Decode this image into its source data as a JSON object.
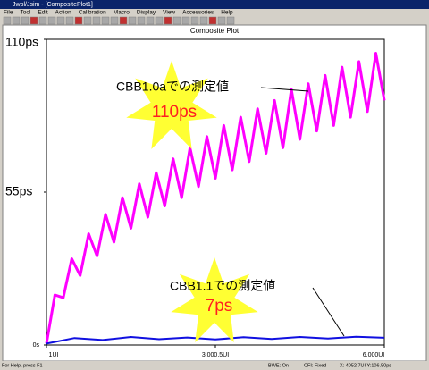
{
  "window": {
    "title": "Jwpl/Jsim - [CompositePlot1]",
    "menu": [
      "File",
      "Tool",
      "Edit",
      "Action",
      "Calibration",
      "Macro",
      "Display",
      "View",
      "Accessories",
      "Help"
    ],
    "status": [
      "For Help, press F1",
      "BWE: On",
      "CFI: Fixed",
      "X: 4052.7UI Y:106.50ps"
    ]
  },
  "chart_data": {
    "type": "line",
    "title": "Composite Plot",
    "xlim": [
      1,
      6000
    ],
    "ylim": [
      0,
      110
    ],
    "xticks": [
      {
        "value": 1,
        "label": "1UI"
      },
      {
        "value": 3000.5,
        "label": "3,000.5UI"
      },
      {
        "value": 6000,
        "label": "6,000UI"
      }
    ],
    "yticks": [
      {
        "value": 0,
        "label": "0s"
      },
      {
        "value": 55,
        "label": "55ps"
      },
      {
        "value": 110,
        "label": "110ps"
      }
    ],
    "series": [
      {
        "name": "CBB1.0aでの測定値",
        "color": "#ff00ff",
        "x": [
          1,
          150,
          300,
          450,
          600,
          750,
          900,
          1050,
          1200,
          1350,
          1500,
          1650,
          1800,
          1950,
          2100,
          2250,
          2400,
          2550,
          2700,
          2850,
          3000,
          3150,
          3300,
          3450,
          3600,
          3750,
          3900,
          4050,
          4200,
          4350,
          4500,
          4650,
          4800,
          4950,
          5100,
          5250,
          5400,
          5550,
          5700,
          5850,
          6000
        ],
        "values": [
          0.5,
          18,
          17,
          31,
          25,
          40,
          32,
          47,
          37,
          53,
          42,
          58,
          46,
          62,
          50,
          67,
          53,
          71,
          57,
          75,
          60,
          79,
          63,
          82,
          66,
          85,
          69,
          88,
          71,
          92,
          74,
          94,
          77,
          97,
          79,
          100,
          82,
          102,
          84,
          105,
          88
        ]
      },
      {
        "name": "CBB1.1での測定値",
        "color": "#1010e0",
        "x": [
          1,
          500,
          1000,
          1500,
          2000,
          2500,
          3000,
          3500,
          4000,
          4500,
          5000,
          5500,
          6000
        ],
        "values": [
          0.5,
          2.5,
          1.8,
          2.9,
          2.1,
          2.7,
          2.0,
          2.8,
          2.2,
          2.9,
          2.3,
          3.0,
          2.6
        ]
      }
    ],
    "annotations": [
      "110ps",
      "7ps"
    ]
  }
}
